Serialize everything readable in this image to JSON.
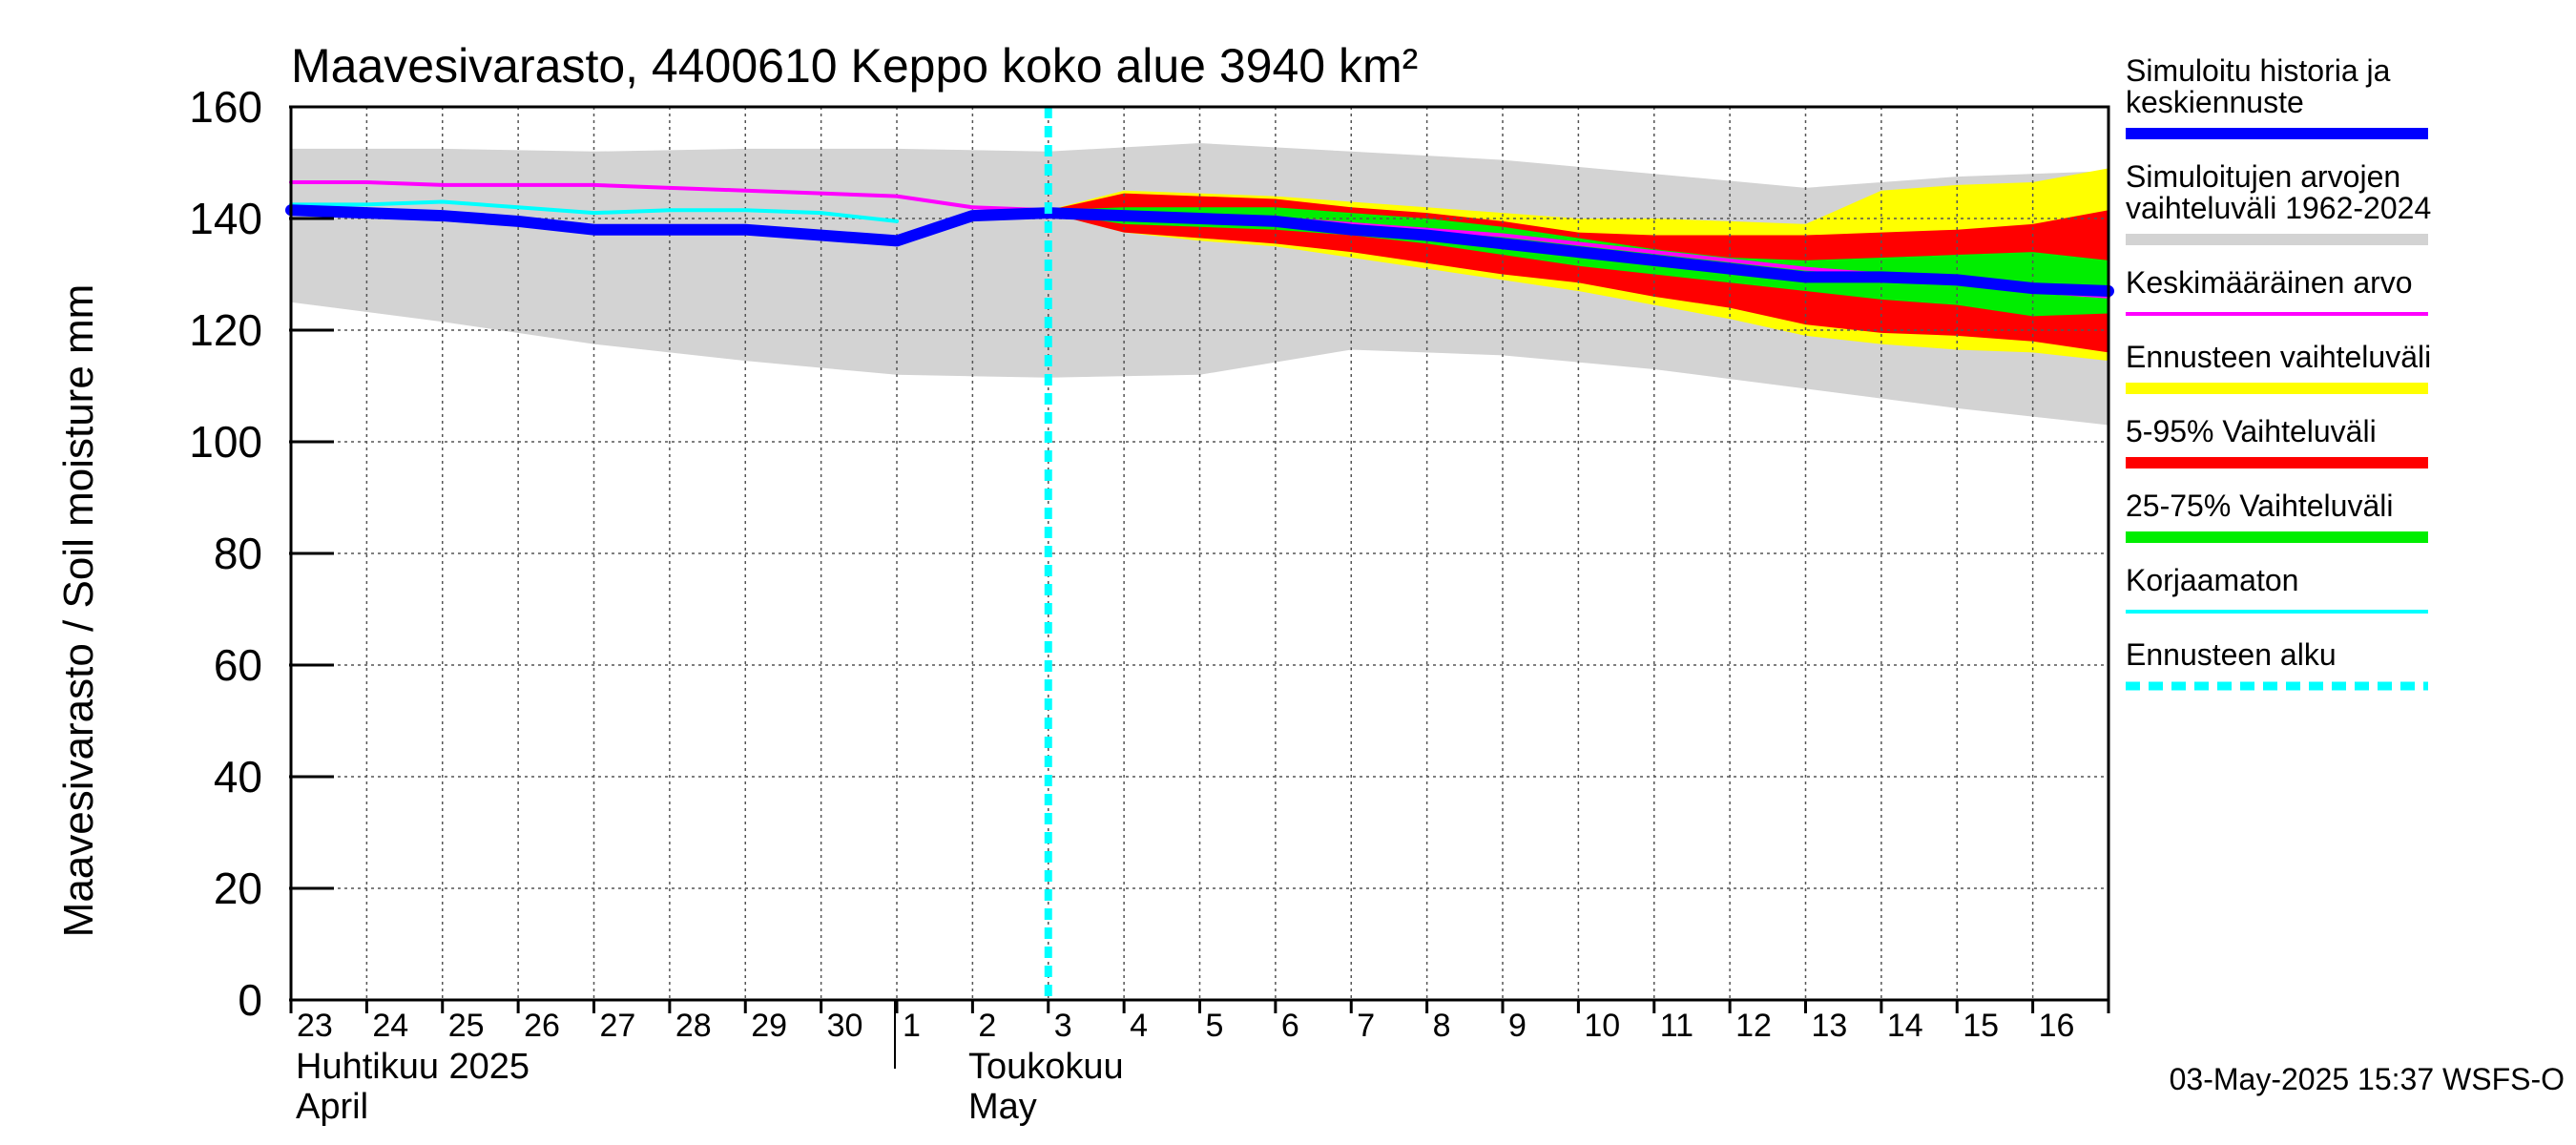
{
  "chart_data": {
    "type": "area",
    "title": "Maavesivarasto, 4400610 Keppo koko alue 3940 km²",
    "ylabel": "Maavesivarasto / Soil moisture   mm",
    "ylim": [
      0,
      160
    ],
    "yticks": [
      0,
      20,
      40,
      60,
      80,
      100,
      120,
      140,
      160
    ],
    "xlim": [
      0,
      24
    ],
    "x_tick_labels": [
      "23",
      "24",
      "25",
      "26",
      "27",
      "28",
      "29",
      "30",
      "1",
      "2",
      "3",
      "4",
      "5",
      "6",
      "7",
      "8",
      "9",
      "10",
      "11",
      "12",
      "13",
      "14",
      "15",
      "16"
    ],
    "month_labels": [
      {
        "line1": "Huhtikuu  2025",
        "line2": "April",
        "start_day_index": 0
      },
      {
        "line1": "Toukokuu",
        "line2": "May",
        "start_day_index": 8
      }
    ],
    "month_separator_day_index": 8,
    "forecast_start_day_index": 10,
    "timestamp": "03-May-2025 15:37 WSFS-O",
    "series": {
      "history_range": {
        "name": "Simuloitujen arvojen vaihteluväli 1962-2024",
        "color": "#d3d3d3",
        "x": [
          0,
          2,
          4,
          6,
          8,
          10,
          12,
          14,
          16,
          18,
          20,
          22,
          24
        ],
        "upper": [
          152.5,
          152.5,
          152,
          152.5,
          152.5,
          152,
          153.5,
          152,
          150.5,
          148,
          145.5,
          147.5,
          148.5
        ],
        "lower": [
          125,
          121.5,
          117.5,
          114.5,
          112,
          111.5,
          112,
          116.5,
          115.5,
          113,
          109.5,
          106,
          103
        ]
      },
      "forecast_range": {
        "name": "Ennusteen vaihteluväli",
        "color": "#ffff00",
        "x": [
          10,
          11,
          12,
          13,
          14,
          15,
          16,
          17,
          18,
          19,
          20,
          21,
          22,
          23,
          24
        ],
        "upper": [
          141.5,
          145,
          144.5,
          144,
          143,
          142,
          141,
          140,
          140,
          139.5,
          139,
          145,
          146,
          146.5,
          149
        ],
        "lower": [
          141,
          137.5,
          136,
          135,
          133,
          131,
          129,
          127,
          124.5,
          122,
          119,
          117.5,
          116.5,
          116,
          114.5
        ]
      },
      "p5_95": {
        "name": "5-95% Vaihteluväli",
        "color": "#ff0000",
        "x": [
          10,
          11,
          12,
          13,
          14,
          15,
          16,
          17,
          18,
          19,
          20,
          21,
          22,
          23,
          24
        ],
        "upper": [
          141.5,
          144.5,
          144,
          143.5,
          142,
          141,
          139.5,
          137.5,
          137,
          137,
          137,
          137.5,
          138,
          139,
          141.5
        ],
        "lower": [
          141,
          137.5,
          136.5,
          135.5,
          134,
          132,
          130,
          128.5,
          126,
          124,
          121,
          119.5,
          119,
          118,
          116
        ]
      },
      "p25_75": {
        "name": "25-75% Vaihteluväli",
        "color": "#00ee00",
        "x": [
          10,
          11,
          12,
          13,
          14,
          15,
          16,
          17,
          18,
          19,
          20,
          21,
          22,
          23,
          24
        ],
        "upper": [
          141.5,
          142,
          142,
          142,
          141,
          140,
          138.5,
          136.5,
          134.5,
          133,
          132.5,
          133,
          133.5,
          134,
          132.5
        ],
        "lower": [
          141,
          139,
          138.5,
          138,
          137,
          135.5,
          133.5,
          131.5,
          130,
          128.5,
          127,
          125.5,
          124.5,
          122.5,
          123
        ]
      },
      "mean": {
        "name": "Keskimääräinen arvo",
        "color": "#ff00ff",
        "x": [
          0,
          1,
          2,
          3,
          4,
          5,
          6,
          7,
          8,
          9,
          10,
          11,
          12,
          13,
          14,
          15,
          16,
          17,
          18,
          19,
          20,
          21,
          22,
          23,
          24
        ],
        "y": [
          146.5,
          146.5,
          146,
          146,
          146,
          145.5,
          145,
          144.5,
          144,
          142,
          141.5,
          141,
          140.5,
          140,
          139,
          138,
          137,
          135.5,
          134,
          132.5,
          131,
          130,
          128.5,
          127,
          126
        ]
      },
      "uncorrected": {
        "name": "Korjaamaton",
        "color": "#00ffff",
        "x": [
          0,
          1,
          2,
          3,
          4,
          5,
          6,
          7,
          8
        ],
        "y": [
          142.5,
          142.5,
          143,
          142,
          141,
          141.5,
          141.5,
          141,
          139.5
        ]
      },
      "simulated": {
        "name": "Simuloitu historia ja keskiennuste",
        "color": "#0000ff",
        "x": [
          0,
          1,
          2,
          3,
          4,
          5,
          6,
          7,
          8,
          9,
          10,
          11,
          12,
          13,
          14,
          15,
          16,
          17,
          18,
          19,
          20,
          21,
          22,
          23,
          24
        ],
        "y": [
          141.5,
          141,
          140.5,
          139.5,
          138,
          138,
          138,
          137,
          136,
          140.5,
          141,
          140.5,
          140,
          139.5,
          138,
          137,
          135.5,
          134,
          132.5,
          131,
          129.5,
          129.5,
          129,
          127.5,
          127
        ]
      }
    },
    "legend": [
      {
        "label": "Simuloitu historia ja keskiennuste",
        "color": "#0000ff",
        "style": "thick"
      },
      {
        "label": "Simuloitujen arvojen vaihteluväli 1962-2024",
        "color": "#d3d3d3",
        "style": "thick"
      },
      {
        "label": "Keskimääräinen arvo",
        "color": "#ff00ff",
        "style": "thin"
      },
      {
        "label": "Ennusteen vaihteluväli",
        "color": "#ffff00",
        "style": "thick"
      },
      {
        "label": "5-95% Vaihteluväli",
        "color": "#ff0000",
        "style": "thick"
      },
      {
        "label": "25-75% Vaihteluväli",
        "color": "#00ee00",
        "style": "thick"
      },
      {
        "label": "Korjaamaton",
        "color": "#00ffff",
        "style": "thin"
      },
      {
        "label": "Ennusteen alku",
        "color": "#00ffff",
        "style": "dashed"
      }
    ]
  }
}
